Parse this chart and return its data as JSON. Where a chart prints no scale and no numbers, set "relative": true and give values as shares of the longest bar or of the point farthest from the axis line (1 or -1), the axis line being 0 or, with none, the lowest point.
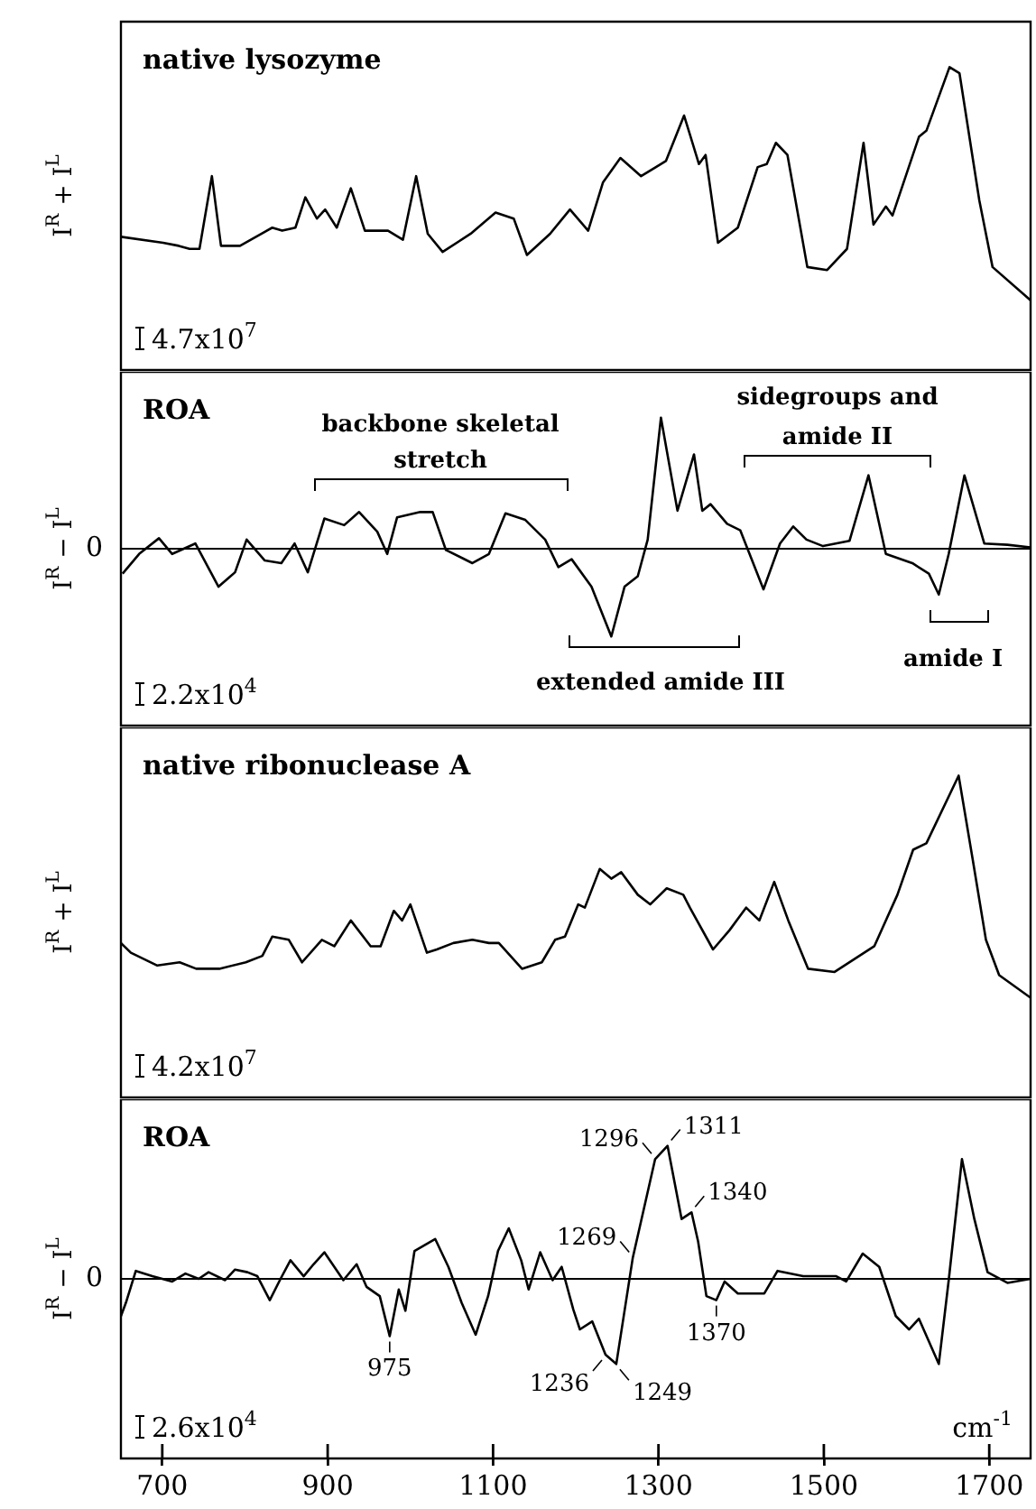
{
  "chart_data": [
    {
      "type": "line",
      "title": "native lysozyme",
      "ylabel": "I$^{R}$ + I$^{L}$",
      "relative": true,
      "color": "#000000",
      "marker": "none",
      "tick_labels": false,
      "xlim": [
        650,
        1750
      ],
      "x": [
        650,
        701,
        720,
        733,
        745,
        760,
        771,
        794,
        833,
        845,
        861,
        873,
        887,
        897,
        911,
        928,
        945,
        973,
        991,
        1007,
        1021,
        1039,
        1073,
        1103,
        1125,
        1141,
        1169,
        1193,
        1215,
        1233,
        1254,
        1279,
        1297,
        1309,
        1331,
        1349,
        1357,
        1372,
        1396,
        1420,
        1431,
        1442,
        1456,
        1480,
        1504,
        1528,
        1548,
        1560,
        1575,
        1583,
        1615,
        1624,
        1652,
        1664,
        1688,
        1704,
        1750
      ],
      "values": [
        0.44,
        0.42,
        0.41,
        0.4,
        0.4,
        0.64,
        0.41,
        0.41,
        0.47,
        0.46,
        0.47,
        0.57,
        0.5,
        0.53,
        0.47,
        0.6,
        0.46,
        0.46,
        0.43,
        0.64,
        0.45,
        0.39,
        0.45,
        0.52,
        0.5,
        0.38,
        0.45,
        0.53,
        0.46,
        0.62,
        0.7,
        0.64,
        0.67,
        0.69,
        0.84,
        0.68,
        0.71,
        0.42,
        0.47,
        0.67,
        0.68,
        0.75,
        0.71,
        0.34,
        0.33,
        0.4,
        0.75,
        0.48,
        0.54,
        0.51,
        0.77,
        0.79,
        1,
        0.98,
        0.56,
        0.34,
        0.23
      ],
      "annotations": [
        "4.7x10$^{7}$"
      ]
    },
    {
      "type": "line",
      "title": "ROA",
      "ylabel": "I$^{R}$ − I$^{L}$",
      "relative": true,
      "color": "#000000",
      "marker": "none",
      "tick_labels": false,
      "xlim": [
        650,
        1750
      ],
      "x": [
        652,
        672,
        696,
        712,
        740,
        768,
        788,
        802,
        824,
        844,
        860,
        876,
        896,
        920,
        938,
        960,
        972,
        984,
        1012,
        1027,
        1043,
        1075,
        1095,
        1115,
        1139,
        1163,
        1179,
        1195,
        1219,
        1243,
        1259,
        1275,
        1287,
        1303,
        1323,
        1343,
        1353,
        1363,
        1383,
        1399,
        1427,
        1447,
        1463,
        1479,
        1499,
        1531,
        1554,
        1575,
        1607,
        1627,
        1639,
        1651,
        1670,
        1694,
        1722,
        1750
      ],
      "values": [
        -0.19,
        -0.04,
        0.08,
        -0.04,
        0.04,
        -0.29,
        -0.18,
        0.07,
        -0.09,
        -0.11,
        0.04,
        -0.18,
        0.23,
        0.18,
        0.28,
        0.13,
        -0.04,
        0.24,
        0.28,
        0.28,
        -0.01,
        -0.11,
        -0.04,
        0.27,
        0.22,
        0.07,
        -0.14,
        -0.08,
        -0.29,
        -0.67,
        -0.29,
        -0.21,
        0.07,
        1,
        0.29,
        0.72,
        0.29,
        0.34,
        0.19,
        0.14,
        -0.31,
        0.04,
        0.17,
        0.07,
        0.02,
        0.06,
        0.56,
        -0.04,
        -0.11,
        -0.19,
        -0.35,
        -0.04,
        0.56,
        0.04,
        0.03,
        0.01
      ],
      "ref_lines": [
        {
          "axis": "y",
          "value": 0,
          "label": "0"
        }
      ],
      "annotations": [
        "2.2x10$^{4}$",
        "backbone skeletal\nstretch",
        "sidegroups and\namide II",
        "extended amide III",
        "amide I"
      ]
    },
    {
      "type": "line",
      "title": "native ribonuclease A",
      "ylabel": "I$^{R}$ + I$^{L}$",
      "relative": true,
      "color": "#000000",
      "marker": "none",
      "tick_labels": false,
      "xlim": [
        650,
        1750
      ],
      "x": [
        650,
        662,
        694,
        721,
        741,
        769,
        801,
        821,
        833,
        853,
        869,
        893,
        908,
        928,
        952,
        964,
        980,
        990,
        1000,
        1020,
        1032,
        1052,
        1075,
        1095,
        1107,
        1135,
        1159,
        1175,
        1187,
        1203,
        1211,
        1229,
        1243,
        1255,
        1275,
        1290,
        1310,
        1330,
        1338,
        1366,
        1386,
        1406,
        1422,
        1440,
        1457,
        1481,
        1513,
        1561,
        1589,
        1608,
        1624,
        1663,
        1680,
        1696,
        1712,
        1750
      ],
      "values": [
        0.48,
        0.45,
        0.41,
        0.42,
        0.4,
        0.4,
        0.42,
        0.44,
        0.5,
        0.49,
        0.42,
        0.49,
        0.47,
        0.55,
        0.47,
        0.47,
        0.58,
        0.55,
        0.6,
        0.45,
        0.46,
        0.48,
        0.49,
        0.48,
        0.48,
        0.4,
        0.42,
        0.49,
        0.5,
        0.6,
        0.59,
        0.71,
        0.68,
        0.7,
        0.63,
        0.6,
        0.65,
        0.63,
        0.59,
        0.46,
        0.52,
        0.59,
        0.55,
        0.67,
        0.55,
        0.4,
        0.39,
        0.47,
        0.63,
        0.77,
        0.79,
        1,
        0.74,
        0.49,
        0.38,
        0.31
      ],
      "annotations": [
        "4.2x10$^{7}$"
      ]
    },
    {
      "type": "line",
      "title": "ROA",
      "ylabel": "I$^{R}$ − I$^{L}$",
      "xlabel": "cm$^{-1}$",
      "relative": true,
      "color": "#000000",
      "marker": "none",
      "tick_labels": "x",
      "xlim": [
        650,
        1750
      ],
      "xticks": [
        700,
        900,
        1100,
        1300,
        1500,
        1700
      ],
      "x": [
        650,
        656,
        668,
        688,
        712,
        728,
        744,
        756,
        776,
        788,
        803,
        815,
        830,
        843,
        855,
        871,
        883,
        896,
        919,
        935,
        947,
        963,
        975,
        986,
        994,
        1005,
        1030,
        1046,
        1062,
        1079,
        1094,
        1106,
        1119,
        1134,
        1143,
        1157,
        1172,
        1183,
        1197,
        1205,
        1220,
        1236,
        1249,
        1269,
        1296,
        1311,
        1328,
        1340,
        1348,
        1358,
        1370,
        1380,
        1396,
        1428,
        1444,
        1475,
        1515,
        1527,
        1547,
        1567,
        1587,
        1603,
        1615,
        1639,
        1651,
        1667,
        1682,
        1698,
        1722,
        1750
      ],
      "values": [
        -0.28,
        -0.18,
        0.06,
        0.02,
        -0.02,
        0.04,
        0,
        0.05,
        -0.01,
        0.07,
        0.05,
        0.02,
        -0.16,
        0,
        0.14,
        0.02,
        0.11,
        0.2,
        -0.01,
        0.11,
        -0.06,
        -0.13,
        -0.43,
        -0.08,
        -0.24,
        0.21,
        0.3,
        0.09,
        -0.18,
        -0.42,
        -0.13,
        0.21,
        0.38,
        0.14,
        -0.08,
        0.2,
        -0.01,
        0.09,
        -0.23,
        -0.38,
        -0.32,
        -0.57,
        -0.64,
        0.16,
        0.9,
        1,
        0.45,
        0.5,
        0.28,
        -0.13,
        -0.16,
        -0.02,
        -0.11,
        -0.11,
        0.06,
        0.02,
        0.02,
        -0.02,
        0.19,
        0.09,
        -0.28,
        -0.38,
        -0.3,
        -0.64,
        -0.01,
        0.9,
        0.45,
        0.05,
        -0.03,
        0
      ],
      "ref_lines": [
        {
          "axis": "y",
          "value": 0,
          "label": "0"
        }
      ],
      "annotations": [
        "2.6x10$^{4}$",
        {
          "text": "975",
          "x": 975,
          "y": -0.43
        },
        {
          "text": "1236",
          "x": 1236,
          "y": -0.57
        },
        {
          "text": "1249",
          "x": 1249,
          "y": -0.64
        },
        {
          "text": "1269",
          "x": 1269,
          "y": 0.16
        },
        {
          "text": "1296",
          "x": 1296,
          "y": 0.9
        },
        {
          "text": "1311",
          "x": 1311,
          "y": 1
        },
        {
          "text": "1340",
          "x": 1340,
          "y": 0.5
        },
        {
          "text": "1370",
          "x": 1370,
          "y": -0.16
        }
      ]
    }
  ]
}
